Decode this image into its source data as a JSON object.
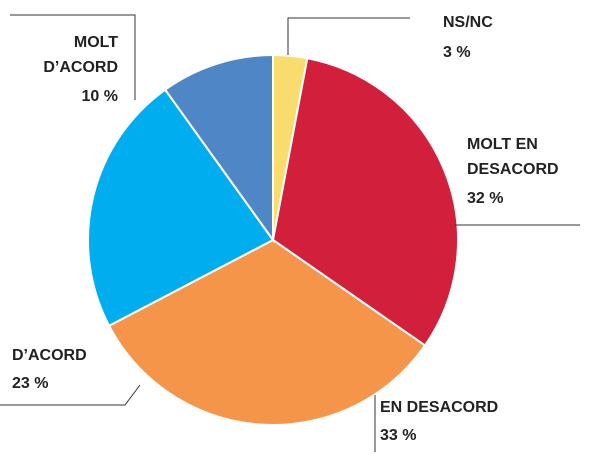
{
  "chart_data": {
    "type": "pie",
    "categories": [
      "NS/NC",
      "MOLT EN DESACORD",
      "EN DESACORD",
      "D’ACORD",
      "MOLT D’ACORD"
    ],
    "values": [
      3,
      32,
      33,
      23,
      10
    ],
    "value_labels": [
      "3 %",
      "32 %",
      "33 %",
      "23 %",
      "10 %"
    ],
    "colors": [
      "#f8dc6e",
      "#d21f3c",
      "#f5954a",
      "#00aeef",
      "#4f86c6"
    ]
  }
}
